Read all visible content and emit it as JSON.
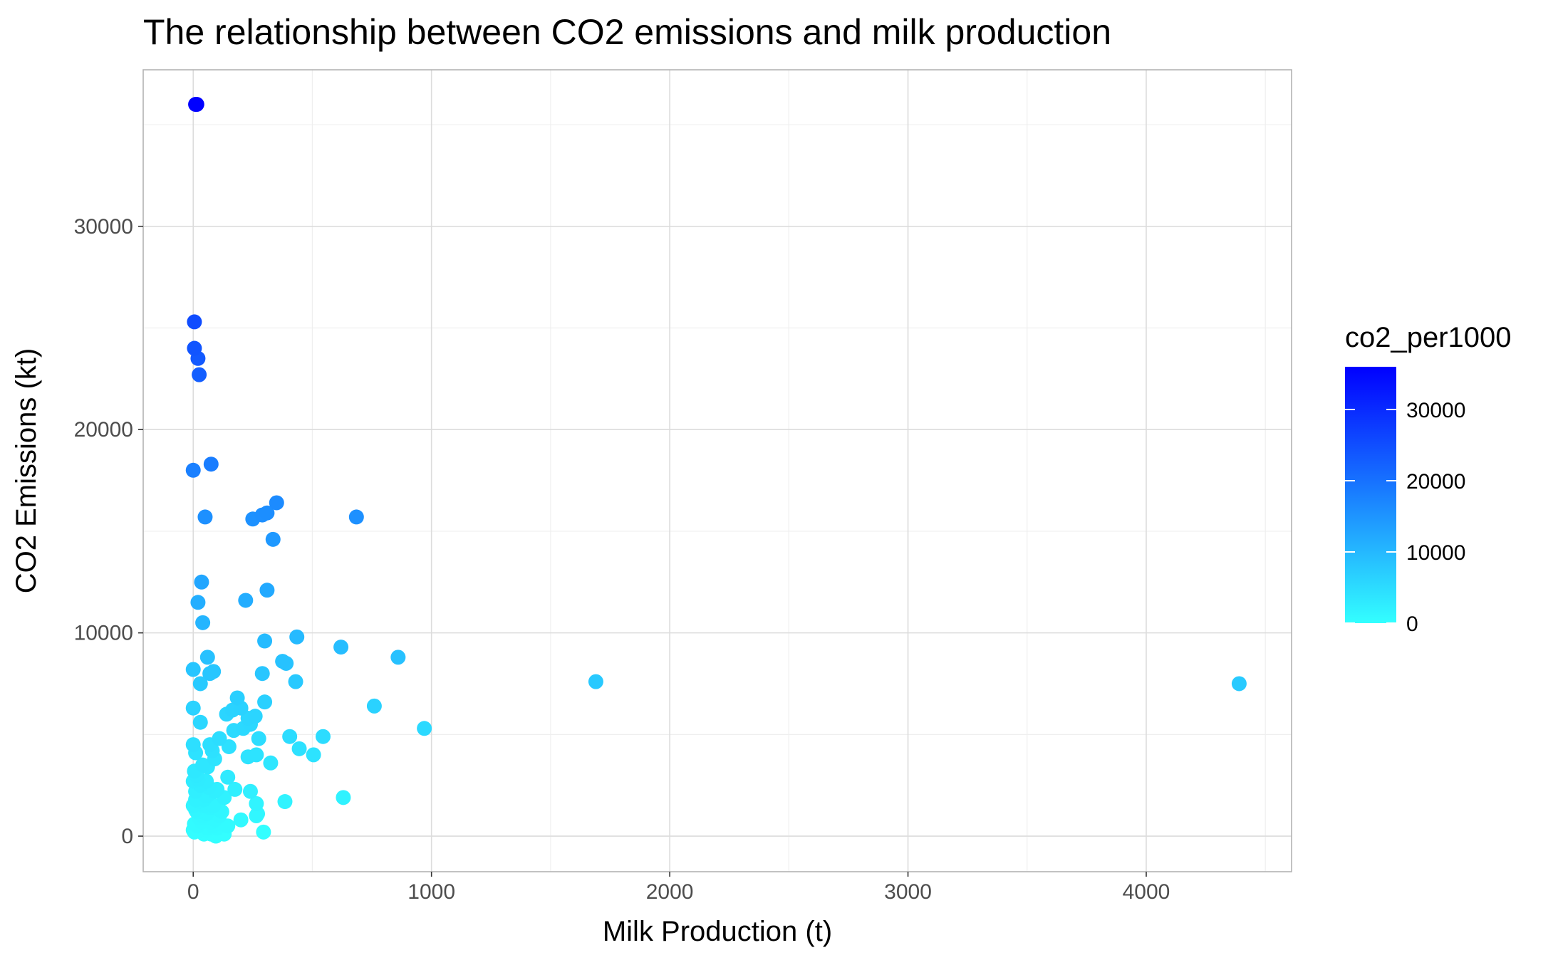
{
  "chart_data": {
    "type": "scatter",
    "title": "The relationship between CO2 emissions and milk production",
    "xlabel": "Milk Production (t)",
    "ylabel": "CO2 Emissions (kt)",
    "xlim": [
      -210,
      4610
    ],
    "ylim": [
      -1750,
      37700
    ],
    "x_ticks": [
      0,
      1000,
      2000,
      3000,
      4000
    ],
    "x_tick_labels": [
      "0",
      "1000",
      "2000",
      "3000",
      "4000"
    ],
    "y_ticks": [
      0,
      10000,
      20000,
      30000
    ],
    "y_tick_labels": [
      "0",
      "10000",
      "20000",
      "30000"
    ],
    "x_minor_ticks": [
      500,
      1500,
      2500,
      3500,
      4500
    ],
    "y_minor_ticks": [
      5000,
      15000,
      25000,
      35000
    ],
    "grid": true,
    "legend": {
      "title": "co2_per1000",
      "position": "right",
      "type": "colorbar",
      "range": [
        0,
        36000
      ],
      "ticks": [
        0,
        10000,
        20000,
        30000
      ],
      "tick_labels": [
        "0",
        "10000",
        "20000",
        "30000"
      ],
      "low_color": "#33FFFF",
      "high_color": "#0000FF"
    },
    "colors": {
      "background": "#FFFFFF",
      "panel_border": "#B3B3B3",
      "grid_major": "#DCDCDC",
      "grid_minor": "#EFEFEF"
    },
    "series": [
      {
        "color_by": "y",
        "x": [
          15,
          10,
          5,
          20,
          25,
          5,
          75,
          50,
          250,
          290,
          310,
          350,
          685,
          335,
          35,
          20,
          40,
          220,
          310,
          300,
          435,
          620,
          860,
          60,
          375,
          390,
          0,
          85,
          70,
          30,
          290,
          1690,
          4390,
          430,
          185,
          300,
          760,
          200,
          165,
          0,
          140,
          260,
          230,
          30,
          0,
          240,
          210,
          970,
          170,
          275,
          405,
          110,
          70,
          545,
          150,
          80,
          445,
          0,
          505,
          230,
          265,
          325,
          10,
          90,
          40,
          60,
          5,
          15,
          145,
          20,
          55,
          175,
          240,
          100,
          385,
          265,
          630,
          130,
          270,
          30,
          60,
          90,
          200,
          110,
          45,
          25,
          70,
          120,
          265,
          0,
          10,
          35,
          145,
          80,
          15,
          50,
          110,
          60,
          100,
          295,
          0,
          20,
          40,
          75,
          130,
          5,
          25,
          55,
          10,
          85,
          45,
          100,
          30,
          70,
          15,
          60,
          5,
          40,
          90,
          20,
          35,
          80,
          0,
          50,
          65,
          110,
          10,
          25,
          45,
          95
        ],
        "y": [
          36000,
          36000,
          25300,
          23500,
          22700,
          24000,
          18300,
          15700,
          15600,
          15800,
          15900,
          16400,
          15700,
          14600,
          12500,
          11500,
          10500,
          11600,
          12100,
          9600,
          9800,
          9300,
          8800,
          8800,
          8600,
          8500,
          18000,
          8100,
          8000,
          7500,
          8000,
          7600,
          7500,
          7600,
          6800,
          6600,
          6400,
          6300,
          6200,
          8200,
          6000,
          5900,
          5800,
          5600,
          6300,
          5500,
          5300,
          5300,
          5200,
          4800,
          4900,
          4800,
          4500,
          4900,
          4400,
          4200,
          4300,
          4500,
          4000,
          3900,
          4000,
          3600,
          4100,
          3800,
          3500,
          3400,
          3200,
          3000,
          2900,
          2800,
          2700,
          2300,
          2200,
          2300,
          1700,
          1600,
          1900,
          1900,
          1100,
          2500,
          2000,
          2200,
          800,
          1000,
          1500,
          1700,
          1400,
          1200,
          1000,
          2700,
          1800,
          1600,
          500,
          700,
          1200,
          900,
          600,
          400,
          200,
          200,
          300,
          500,
          200,
          100,
          100,
          600,
          900,
          1100,
          1300,
          1500,
          1800,
          400,
          300,
          700,
          600,
          300,
          200,
          1000,
          800,
          1200,
          700,
          500,
          1500,
          2000,
          2400,
          1300,
          2200,
          1900,
          100,
          0
        ]
      }
    ]
  }
}
